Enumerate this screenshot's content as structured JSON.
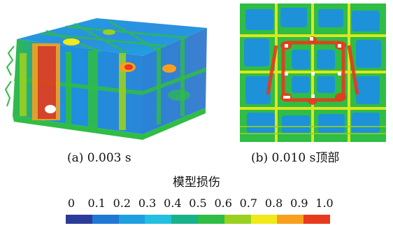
{
  "captions": {
    "a": "(a) 0.003 s",
    "b": "(b) 0.010 s顶部"
  },
  "legend": {
    "title": "模型损伤",
    "ticks": [
      "0",
      "0.1",
      "0.2",
      "0.3",
      "0.4",
      "0.5",
      "0.6",
      "0.7",
      "0.8",
      "0.9",
      "1.0"
    ],
    "colors": [
      "#2b3b9a",
      "#1f78d6",
      "#1ea0e0",
      "#22bfe0",
      "#18b28a",
      "#2fbd45",
      "#9ad020",
      "#f1ea1a",
      "#f8a01e",
      "#e83a1c"
    ]
  }
}
